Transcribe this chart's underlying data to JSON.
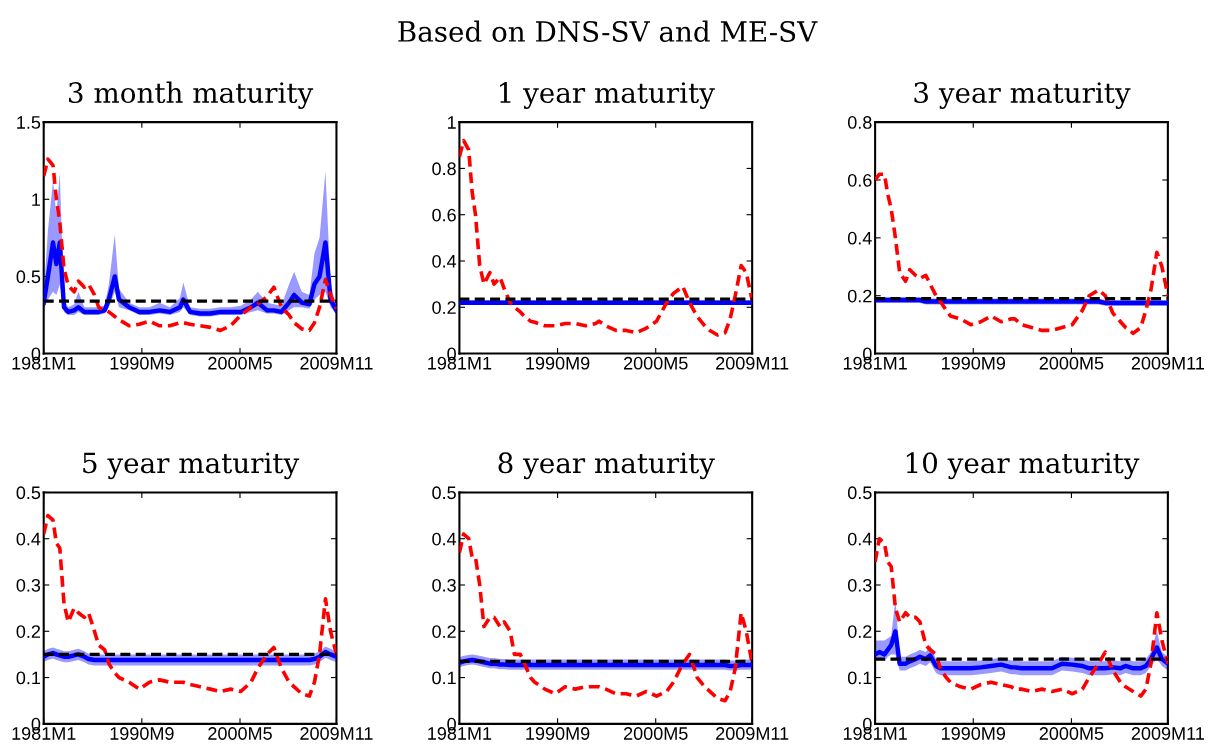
{
  "chart_data": [
    {
      "type": "line",
      "title": "3 month maturity",
      "annotations": [
        "Based on DNS-SV and ME-SV"
      ],
      "x": [
        "1981-01",
        "1981-06",
        "1981-12",
        "1982-04",
        "1982-08",
        "1983-01",
        "1983-06",
        "1984-01",
        "1984-06",
        "1985-01",
        "1985-06",
        "1986-01",
        "1986-06",
        "1987-01",
        "1987-06",
        "1988-01",
        "1988-06",
        "1989-06",
        "1990-06",
        "1991-06",
        "1992-06",
        "1993-06",
        "1994-06",
        "1994-10",
        "1995-06",
        "1996-06",
        "1997-06",
        "1998-06",
        "1999-06",
        "2000-06",
        "2001-06",
        "2002-02",
        "2003-01",
        "2003-09",
        "2004-06",
        "2005-03",
        "2005-09",
        "2006-06",
        "2007-03",
        "2007-09",
        "2008-03",
        "2008-10",
        "2009-04",
        "2009-11"
      ],
      "xlim": [
        "1981-01",
        "2009-11"
      ],
      "xticks": [
        {
          "value": "1981-01",
          "label": "1981M1"
        },
        {
          "value": "1990-09",
          "label": "1990M9"
        },
        {
          "value": "2000-05",
          "label": "2000M5"
        },
        {
          "value": "2009-11",
          "label": "2009M11"
        }
      ],
      "ylim": [
        0,
        1.5
      ],
      "yticks": [
        0,
        0.5,
        1,
        1.5
      ],
      "series": [
        {
          "color": "#ff0000",
          "line_style": "dashed",
          "values": [
            1.15,
            1.26,
            1.22,
            1.0,
            0.85,
            0.55,
            0.44,
            0.4,
            0.47,
            0.43,
            0.45,
            0.38,
            0.3,
            0.28,
            0.27,
            0.24,
            0.22,
            0.18,
            0.19,
            0.21,
            0.18,
            0.18,
            0.2,
            0.2,
            0.19,
            0.18,
            0.17,
            0.15,
            0.18,
            0.25,
            0.3,
            0.32,
            0.37,
            0.43,
            0.3,
            0.25,
            0.2,
            0.16,
            0.15,
            0.2,
            0.3,
            0.48,
            0.38,
            0.29
          ]
        },
        {
          "color": "#0000ff",
          "line_style": "solid",
          "values": [
            0.33,
            0.5,
            0.72,
            0.58,
            0.72,
            0.3,
            0.27,
            0.28,
            0.3,
            0.27,
            0.27,
            0.27,
            0.27,
            0.28,
            0.35,
            0.5,
            0.35,
            0.3,
            0.27,
            0.27,
            0.28,
            0.27,
            0.3,
            0.35,
            0.27,
            0.26,
            0.26,
            0.27,
            0.27,
            0.27,
            0.3,
            0.33,
            0.28,
            0.28,
            0.27,
            0.33,
            0.38,
            0.33,
            0.32,
            0.45,
            0.5,
            0.72,
            0.35,
            0.28
          ],
          "lower": [
            0.29,
            0.35,
            0.4,
            0.38,
            0.45,
            0.27,
            0.25,
            0.25,
            0.27,
            0.25,
            0.25,
            0.25,
            0.25,
            0.26,
            0.3,
            0.4,
            0.3,
            0.28,
            0.25,
            0.25,
            0.26,
            0.25,
            0.27,
            0.3,
            0.25,
            0.24,
            0.24,
            0.25,
            0.25,
            0.25,
            0.27,
            0.28,
            0.26,
            0.26,
            0.25,
            0.28,
            0.3,
            0.3,
            0.29,
            0.35,
            0.38,
            0.4,
            0.3,
            0.26
          ],
          "upper": [
            0.37,
            0.8,
            1.12,
            0.9,
            1.17,
            0.35,
            0.3,
            0.32,
            0.4,
            0.3,
            0.3,
            0.3,
            0.3,
            0.31,
            0.45,
            0.77,
            0.42,
            0.33,
            0.3,
            0.3,
            0.33,
            0.3,
            0.36,
            0.46,
            0.3,
            0.29,
            0.29,
            0.3,
            0.3,
            0.31,
            0.35,
            0.4,
            0.33,
            0.32,
            0.31,
            0.45,
            0.53,
            0.4,
            0.38,
            0.65,
            0.75,
            1.18,
            0.45,
            0.3
          ]
        }
      ],
      "ref_lines": [
        {
          "axis": "y",
          "value": 0.34,
          "color": "#000000",
          "line_style": "dashed"
        }
      ]
    },
    {
      "type": "line",
      "title": "1 year maturity",
      "x": [
        "1981-01",
        "1981-06",
        "1981-12",
        "1982-04",
        "1982-08",
        "1983-01",
        "1983-06",
        "1984-01",
        "1984-06",
        "1985-01",
        "1985-06",
        "1986-01",
        "1986-06",
        "1987-01",
        "1987-06",
        "1988-01",
        "1988-06",
        "1989-06",
        "1990-06",
        "1991-06",
        "1992-06",
        "1993-06",
        "1994-06",
        "1994-10",
        "1995-06",
        "1996-06",
        "1997-06",
        "1998-06",
        "1999-06",
        "2000-06",
        "2001-06",
        "2002-02",
        "2003-01",
        "2003-09",
        "2004-06",
        "2005-03",
        "2005-09",
        "2006-06",
        "2007-03",
        "2007-09",
        "2008-03",
        "2008-10",
        "2009-04",
        "2009-11"
      ],
      "xlim": [
        "1981-01",
        "2009-11"
      ],
      "xticks": [
        {
          "value": "1981-01",
          "label": "1981M1"
        },
        {
          "value": "1990-09",
          "label": "1990M9"
        },
        {
          "value": "2000-05",
          "label": "2000M5"
        },
        {
          "value": "2009-11",
          "label": "2009M11"
        }
      ],
      "ylim": [
        0,
        1
      ],
      "yticks": [
        0,
        0.2,
        0.4,
        0.6,
        0.8,
        1
      ],
      "series": [
        {
          "color": "#ff0000",
          "line_style": "dashed",
          "values": [
            0.85,
            0.92,
            0.88,
            0.7,
            0.6,
            0.38,
            0.3,
            0.35,
            0.3,
            0.33,
            0.28,
            0.22,
            0.2,
            0.18,
            0.16,
            0.14,
            0.135,
            0.12,
            0.12,
            0.13,
            0.13,
            0.12,
            0.13,
            0.14,
            0.12,
            0.1,
            0.1,
            0.09,
            0.11,
            0.14,
            0.22,
            0.26,
            0.29,
            0.22,
            0.16,
            0.12,
            0.1,
            0.08,
            0.09,
            0.15,
            0.25,
            0.38,
            0.35,
            0.23
          ]
        },
        {
          "color": "#0000ff",
          "line_style": "solid",
          "values": [
            0.22,
            0.22,
            0.22,
            0.22,
            0.22,
            0.22,
            0.22,
            0.22,
            0.22,
            0.22,
            0.22,
            0.22,
            0.22,
            0.22,
            0.22,
            0.22,
            0.22,
            0.22,
            0.22,
            0.22,
            0.22,
            0.22,
            0.22,
            0.22,
            0.22,
            0.22,
            0.22,
            0.22,
            0.22,
            0.22,
            0.22,
            0.22,
            0.22,
            0.22,
            0.22,
            0.22,
            0.22,
            0.22,
            0.22,
            0.22,
            0.22,
            0.22,
            0.22,
            0.22
          ],
          "lower": [
            0.21,
            0.21,
            0.21,
            0.21,
            0.21,
            0.21,
            0.21,
            0.21,
            0.21,
            0.21,
            0.21,
            0.21,
            0.21,
            0.21,
            0.21,
            0.21,
            0.21,
            0.21,
            0.21,
            0.21,
            0.21,
            0.21,
            0.21,
            0.21,
            0.21,
            0.21,
            0.21,
            0.21,
            0.21,
            0.21,
            0.21,
            0.21,
            0.21,
            0.21,
            0.21,
            0.21,
            0.21,
            0.21,
            0.21,
            0.21,
            0.21,
            0.21,
            0.21,
            0.21
          ],
          "upper": [
            0.23,
            0.23,
            0.23,
            0.23,
            0.23,
            0.23,
            0.23,
            0.23,
            0.23,
            0.23,
            0.23,
            0.23,
            0.23,
            0.23,
            0.23,
            0.23,
            0.23,
            0.23,
            0.23,
            0.23,
            0.23,
            0.23,
            0.23,
            0.23,
            0.23,
            0.23,
            0.23,
            0.23,
            0.23,
            0.23,
            0.23,
            0.23,
            0.23,
            0.23,
            0.23,
            0.23,
            0.23,
            0.23,
            0.23,
            0.23,
            0.23,
            0.23,
            0.23,
            0.23
          ]
        }
      ],
      "ref_lines": [
        {
          "axis": "y",
          "value": 0.235,
          "color": "#000000",
          "line_style": "dashed"
        }
      ]
    },
    {
      "type": "line",
      "title": "3 year maturity",
      "x": [
        "1981-01",
        "1981-06",
        "1981-12",
        "1982-04",
        "1982-08",
        "1983-01",
        "1983-06",
        "1984-01",
        "1984-06",
        "1985-01",
        "1985-06",
        "1986-01",
        "1986-06",
        "1987-01",
        "1987-06",
        "1988-01",
        "1988-06",
        "1989-06",
        "1990-06",
        "1991-06",
        "1992-06",
        "1993-06",
        "1994-06",
        "1994-10",
        "1995-06",
        "1996-06",
        "1997-06",
        "1998-06",
        "1999-06",
        "2000-06",
        "2001-06",
        "2002-02",
        "2003-01",
        "2003-09",
        "2004-06",
        "2005-03",
        "2005-09",
        "2006-06",
        "2007-03",
        "2007-09",
        "2008-03",
        "2008-10",
        "2009-04",
        "2009-11"
      ],
      "xlim": [
        "1981-01",
        "2009-11"
      ],
      "xticks": [
        {
          "value": "1981-01",
          "label": "1981M1"
        },
        {
          "value": "1990-09",
          "label": "1990M9"
        },
        {
          "value": "2000-05",
          "label": "2000M5"
        },
        {
          "value": "2009-11",
          "label": "2009M11"
        }
      ],
      "ylim": [
        0,
        0.8
      ],
      "yticks": [
        0,
        0.2,
        0.4,
        0.6,
        0.8
      ],
      "series": [
        {
          "color": "#ff0000",
          "line_style": "dashed",
          "values": [
            0.6,
            0.62,
            0.62,
            0.55,
            0.5,
            0.4,
            0.28,
            0.25,
            0.29,
            0.27,
            0.26,
            0.27,
            0.24,
            0.2,
            0.18,
            0.15,
            0.13,
            0.12,
            0.1,
            0.11,
            0.13,
            0.11,
            0.12,
            0.12,
            0.1,
            0.09,
            0.08,
            0.08,
            0.09,
            0.1,
            0.15,
            0.2,
            0.22,
            0.2,
            0.14,
            0.11,
            0.09,
            0.07,
            0.09,
            0.15,
            0.22,
            0.35,
            0.3,
            0.2
          ]
        },
        {
          "color": "#0000ff",
          "line_style": "solid",
          "values": [
            0.185,
            0.185,
            0.185,
            0.185,
            0.185,
            0.185,
            0.185,
            0.185,
            0.185,
            0.185,
            0.185,
            0.18,
            0.18,
            0.18,
            0.18,
            0.18,
            0.18,
            0.18,
            0.18,
            0.18,
            0.18,
            0.18,
            0.18,
            0.18,
            0.18,
            0.18,
            0.18,
            0.18,
            0.18,
            0.18,
            0.18,
            0.18,
            0.18,
            0.175,
            0.175,
            0.175,
            0.175,
            0.175,
            0.175,
            0.175,
            0.175,
            0.175,
            0.175,
            0.175
          ],
          "lower": [
            0.175,
            0.175,
            0.175,
            0.175,
            0.175,
            0.175,
            0.175,
            0.175,
            0.175,
            0.175,
            0.175,
            0.17,
            0.17,
            0.17,
            0.17,
            0.17,
            0.17,
            0.17,
            0.17,
            0.17,
            0.17,
            0.17,
            0.17,
            0.17,
            0.17,
            0.17,
            0.17,
            0.17,
            0.17,
            0.17,
            0.17,
            0.17,
            0.17,
            0.165,
            0.165,
            0.165,
            0.165,
            0.165,
            0.165,
            0.165,
            0.165,
            0.165,
            0.165,
            0.165
          ],
          "upper": [
            0.195,
            0.195,
            0.195,
            0.195,
            0.195,
            0.195,
            0.195,
            0.195,
            0.195,
            0.195,
            0.195,
            0.19,
            0.19,
            0.19,
            0.19,
            0.19,
            0.19,
            0.19,
            0.19,
            0.19,
            0.19,
            0.19,
            0.19,
            0.19,
            0.19,
            0.19,
            0.19,
            0.19,
            0.19,
            0.19,
            0.19,
            0.19,
            0.19,
            0.185,
            0.185,
            0.185,
            0.185,
            0.185,
            0.185,
            0.185,
            0.185,
            0.185,
            0.185,
            0.185
          ]
        }
      ],
      "ref_lines": [
        {
          "axis": "y",
          "value": 0.19,
          "color": "#000000",
          "line_style": "dashed"
        }
      ]
    },
    {
      "type": "line",
      "title": "5 year maturity",
      "x": [
        "1981-01",
        "1981-06",
        "1981-12",
        "1982-04",
        "1982-08",
        "1983-01",
        "1983-06",
        "1984-01",
        "1984-06",
        "1985-01",
        "1985-06",
        "1986-01",
        "1986-06",
        "1987-01",
        "1987-06",
        "1988-01",
        "1988-06",
        "1989-06",
        "1990-06",
        "1991-06",
        "1992-06",
        "1993-06",
        "1994-06",
        "1994-10",
        "1995-06",
        "1996-06",
        "1997-06",
        "1998-06",
        "1999-06",
        "2000-06",
        "2001-06",
        "2002-02",
        "2003-01",
        "2003-09",
        "2004-06",
        "2005-03",
        "2005-09",
        "2006-06",
        "2007-03",
        "2007-09",
        "2008-03",
        "2008-10",
        "2009-04",
        "2009-11"
      ],
      "xlim": [
        "1981-01",
        "2009-11"
      ],
      "xticks": [
        {
          "value": "1981-01",
          "label": "1981M1"
        },
        {
          "value": "1990-09",
          "label": "1990M9"
        },
        {
          "value": "2000-05",
          "label": "2000M5"
        },
        {
          "value": "2009-11",
          "label": "2009M11"
        }
      ],
      "ylim": [
        0,
        0.5
      ],
      "yticks": [
        0,
        0.1,
        0.2,
        0.3,
        0.4,
        0.5
      ],
      "series": [
        {
          "color": "#ff0000",
          "line_style": "dashed",
          "values": [
            0.41,
            0.45,
            0.44,
            0.39,
            0.38,
            0.26,
            0.22,
            0.25,
            0.24,
            0.23,
            0.24,
            0.2,
            0.17,
            0.16,
            0.13,
            0.11,
            0.1,
            0.09,
            0.075,
            0.09,
            0.095,
            0.09,
            0.09,
            0.09,
            0.085,
            0.08,
            0.075,
            0.07,
            0.075,
            0.07,
            0.09,
            0.12,
            0.15,
            0.165,
            0.12,
            0.09,
            0.08,
            0.065,
            0.06,
            0.09,
            0.15,
            0.27,
            0.2,
            0.15
          ]
        },
        {
          "color": "#0000ff",
          "line_style": "solid",
          "values": [
            0.145,
            0.15,
            0.153,
            0.15,
            0.148,
            0.145,
            0.145,
            0.148,
            0.15,
            0.145,
            0.14,
            0.138,
            0.138,
            0.138,
            0.138,
            0.138,
            0.138,
            0.138,
            0.138,
            0.138,
            0.138,
            0.138,
            0.138,
            0.138,
            0.138,
            0.138,
            0.138,
            0.138,
            0.138,
            0.138,
            0.138,
            0.138,
            0.138,
            0.138,
            0.138,
            0.138,
            0.138,
            0.138,
            0.138,
            0.14,
            0.145,
            0.155,
            0.15,
            0.145
          ],
          "lower": [
            0.133,
            0.138,
            0.141,
            0.138,
            0.136,
            0.133,
            0.133,
            0.136,
            0.138,
            0.133,
            0.128,
            0.126,
            0.126,
            0.126,
            0.126,
            0.126,
            0.126,
            0.126,
            0.126,
            0.126,
            0.126,
            0.126,
            0.126,
            0.126,
            0.126,
            0.126,
            0.126,
            0.126,
            0.126,
            0.126,
            0.126,
            0.126,
            0.126,
            0.126,
            0.126,
            0.126,
            0.126,
            0.126,
            0.126,
            0.128,
            0.133,
            0.143,
            0.138,
            0.133
          ],
          "upper": [
            0.157,
            0.162,
            0.165,
            0.162,
            0.16,
            0.157,
            0.157,
            0.16,
            0.162,
            0.157,
            0.152,
            0.15,
            0.15,
            0.15,
            0.15,
            0.15,
            0.15,
            0.15,
            0.15,
            0.15,
            0.15,
            0.15,
            0.15,
            0.15,
            0.15,
            0.15,
            0.15,
            0.15,
            0.15,
            0.15,
            0.15,
            0.15,
            0.15,
            0.15,
            0.15,
            0.15,
            0.15,
            0.15,
            0.15,
            0.152,
            0.157,
            0.167,
            0.162,
            0.157
          ]
        }
      ],
      "ref_lines": [
        {
          "axis": "y",
          "value": 0.15,
          "color": "#000000",
          "line_style": "dashed"
        }
      ]
    },
    {
      "type": "line",
      "title": "8 year maturity",
      "x": [
        "1981-01",
        "1981-06",
        "1981-12",
        "1982-04",
        "1982-08",
        "1983-01",
        "1983-06",
        "1984-01",
        "1984-06",
        "1985-01",
        "1985-06",
        "1986-01",
        "1986-06",
        "1987-01",
        "1987-06",
        "1988-01",
        "1988-06",
        "1989-06",
        "1990-06",
        "1991-06",
        "1992-06",
        "1993-06",
        "1994-06",
        "1994-10",
        "1995-06",
        "1996-06",
        "1997-06",
        "1998-06",
        "1999-06",
        "2000-06",
        "2001-06",
        "2002-02",
        "2003-01",
        "2003-09",
        "2004-06",
        "2005-03",
        "2005-09",
        "2006-06",
        "2007-03",
        "2007-09",
        "2008-03",
        "2008-10",
        "2009-04",
        "2009-11"
      ],
      "xlim": [
        "1981-01",
        "2009-11"
      ],
      "xticks": [
        {
          "value": "1981-01",
          "label": "1981M1"
        },
        {
          "value": "1990-09",
          "label": "1990M9"
        },
        {
          "value": "2000-05",
          "label": "2000M5"
        },
        {
          "value": "2009-11",
          "label": "2009M11"
        }
      ],
      "ylim": [
        0,
        0.5
      ],
      "yticks": [
        0,
        0.1,
        0.2,
        0.3,
        0.4,
        0.5
      ],
      "series": [
        {
          "color": "#ff0000",
          "line_style": "dashed",
          "values": [
            0.37,
            0.41,
            0.4,
            0.36,
            0.36,
            0.3,
            0.21,
            0.23,
            0.23,
            0.21,
            0.22,
            0.2,
            0.15,
            0.15,
            0.13,
            0.1,
            0.09,
            0.075,
            0.065,
            0.08,
            0.075,
            0.08,
            0.08,
            0.08,
            0.075,
            0.065,
            0.065,
            0.06,
            0.07,
            0.06,
            0.07,
            0.09,
            0.13,
            0.15,
            0.1,
            0.08,
            0.07,
            0.055,
            0.05,
            0.07,
            0.12,
            0.24,
            0.2,
            0.13
          ]
        },
        {
          "color": "#0000ff",
          "line_style": "solid",
          "values": [
            0.132,
            0.135,
            0.137,
            0.138,
            0.137,
            0.135,
            0.133,
            0.13,
            0.13,
            0.128,
            0.128,
            0.127,
            0.127,
            0.127,
            0.127,
            0.127,
            0.127,
            0.127,
            0.127,
            0.127,
            0.127,
            0.127,
            0.127,
            0.127,
            0.127,
            0.127,
            0.127,
            0.127,
            0.127,
            0.127,
            0.127,
            0.127,
            0.127,
            0.127,
            0.127,
            0.127,
            0.127,
            0.127,
            0.127,
            0.125,
            0.125,
            0.127,
            0.127,
            0.127
          ],
          "lower": [
            0.122,
            0.125,
            0.127,
            0.128,
            0.127,
            0.125,
            0.123,
            0.12,
            0.12,
            0.118,
            0.118,
            0.117,
            0.117,
            0.117,
            0.117,
            0.117,
            0.117,
            0.117,
            0.117,
            0.117,
            0.117,
            0.117,
            0.117,
            0.117,
            0.117,
            0.117,
            0.117,
            0.117,
            0.117,
            0.117,
            0.117,
            0.117,
            0.117,
            0.117,
            0.117,
            0.117,
            0.117,
            0.117,
            0.117,
            0.115,
            0.115,
            0.117,
            0.117,
            0.117
          ],
          "upper": [
            0.144,
            0.147,
            0.149,
            0.15,
            0.149,
            0.147,
            0.145,
            0.142,
            0.142,
            0.14,
            0.14,
            0.139,
            0.139,
            0.139,
            0.139,
            0.139,
            0.139,
            0.139,
            0.139,
            0.139,
            0.139,
            0.139,
            0.139,
            0.139,
            0.139,
            0.139,
            0.139,
            0.139,
            0.139,
            0.139,
            0.139,
            0.139,
            0.139,
            0.139,
            0.139,
            0.139,
            0.139,
            0.139,
            0.139,
            0.137,
            0.137,
            0.139,
            0.139,
            0.139
          ]
        }
      ],
      "ref_lines": [
        {
          "axis": "y",
          "value": 0.135,
          "color": "#000000",
          "line_style": "dashed"
        }
      ]
    },
    {
      "type": "line",
      "title": "10 year maturity",
      "x": [
        "1981-01",
        "1981-06",
        "1981-12",
        "1982-04",
        "1982-08",
        "1983-01",
        "1983-06",
        "1984-01",
        "1984-06",
        "1985-01",
        "1985-06",
        "1986-01",
        "1986-06",
        "1987-01",
        "1987-06",
        "1988-01",
        "1988-06",
        "1989-06",
        "1990-06",
        "1991-06",
        "1992-06",
        "1993-06",
        "1994-06",
        "1994-10",
        "1995-06",
        "1996-06",
        "1997-06",
        "1998-06",
        "1999-06",
        "2000-06",
        "2001-06",
        "2002-02",
        "2003-01",
        "2003-09",
        "2004-06",
        "2005-03",
        "2005-09",
        "2006-06",
        "2007-03",
        "2007-09",
        "2008-03",
        "2008-10",
        "2009-04",
        "2009-11"
      ],
      "xlim": [
        "1981-01",
        "2009-11"
      ],
      "xticks": [
        {
          "value": "1981-01",
          "label": "1981M1"
        },
        {
          "value": "1990-09",
          "label": "1990M9"
        },
        {
          "value": "2000-05",
          "label": "2000M5"
        },
        {
          "value": "2009-11",
          "label": "2009M11"
        }
      ],
      "ylim": [
        0,
        0.5
      ],
      "yticks": [
        0,
        0.1,
        0.2,
        0.3,
        0.4,
        0.5
      ],
      "series": [
        {
          "color": "#ff0000",
          "line_style": "dashed",
          "values": [
            0.35,
            0.4,
            0.39,
            0.35,
            0.34,
            0.25,
            0.22,
            0.24,
            0.23,
            0.23,
            0.22,
            0.17,
            0.16,
            0.15,
            0.12,
            0.1,
            0.09,
            0.08,
            0.075,
            0.085,
            0.09,
            0.085,
            0.08,
            0.075,
            0.075,
            0.07,
            0.075,
            0.07,
            0.075,
            0.065,
            0.075,
            0.1,
            0.13,
            0.155,
            0.115,
            0.09,
            0.08,
            0.07,
            0.06,
            0.075,
            0.13,
            0.24,
            0.18,
            0.13
          ]
        },
        {
          "color": "#0000ff",
          "line_style": "solid",
          "values": [
            0.15,
            0.155,
            0.15,
            0.16,
            0.17,
            0.2,
            0.13,
            0.13,
            0.135,
            0.14,
            0.145,
            0.14,
            0.148,
            0.125,
            0.12,
            0.12,
            0.12,
            0.12,
            0.12,
            0.122,
            0.125,
            0.128,
            0.122,
            0.122,
            0.12,
            0.12,
            0.12,
            0.12,
            0.13,
            0.128,
            0.125,
            0.12,
            0.12,
            0.12,
            0.122,
            0.12,
            0.125,
            0.12,
            0.12,
            0.125,
            0.14,
            0.165,
            0.14,
            0.13
          ],
          "lower": [
            0.135,
            0.14,
            0.135,
            0.145,
            0.15,
            0.15,
            0.115,
            0.115,
            0.12,
            0.125,
            0.13,
            0.125,
            0.133,
            0.11,
            0.105,
            0.105,
            0.105,
            0.105,
            0.105,
            0.107,
            0.11,
            0.113,
            0.107,
            0.107,
            0.105,
            0.105,
            0.105,
            0.105,
            0.115,
            0.113,
            0.11,
            0.105,
            0.105,
            0.105,
            0.107,
            0.105,
            0.11,
            0.105,
            0.105,
            0.11,
            0.125,
            0.14,
            0.125,
            0.115
          ],
          "upper": [
            0.18,
            0.18,
            0.18,
            0.185,
            0.19,
            0.27,
            0.145,
            0.145,
            0.15,
            0.155,
            0.16,
            0.155,
            0.17,
            0.14,
            0.135,
            0.135,
            0.135,
            0.135,
            0.135,
            0.137,
            0.14,
            0.143,
            0.137,
            0.137,
            0.135,
            0.135,
            0.135,
            0.135,
            0.145,
            0.143,
            0.14,
            0.135,
            0.135,
            0.135,
            0.137,
            0.135,
            0.14,
            0.135,
            0.135,
            0.14,
            0.155,
            0.2,
            0.155,
            0.145
          ]
        }
      ],
      "ref_lines": [
        {
          "axis": "y",
          "value": 0.14,
          "color": "#000000",
          "line_style": "dashed"
        }
      ]
    }
  ]
}
